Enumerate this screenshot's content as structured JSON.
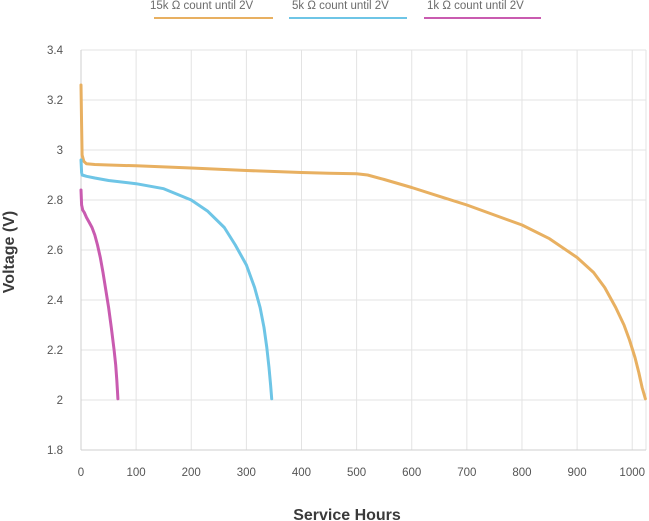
{
  "chart_data": {
    "type": "line",
    "title": "",
    "xlabel": "Service Hours",
    "ylabel": "Voltage (V)",
    "xlim": [
      0,
      1025
    ],
    "ylim": [
      1.8,
      3.4
    ],
    "xticks": [
      0,
      100,
      200,
      300,
      400,
      500,
      600,
      700,
      800,
      900,
      1000
    ],
    "xtick_labels": [
      "0",
      "100",
      "200",
      "300",
      "400",
      "500",
      "600",
      "700",
      "800",
      "900",
      "1000"
    ],
    "yticks": [
      1.8,
      2.0,
      2.2,
      2.4,
      2.6,
      2.8,
      3.0,
      3.2,
      3.4
    ],
    "ytick_labels": [
      "1.8",
      "2",
      "2.2",
      "2.4",
      "2.6",
      "2.8",
      "3",
      "3.2",
      "3.4"
    ],
    "grid": "on",
    "legend_position": "top",
    "series": [
      {
        "name": "15k Ω count until 2V",
        "color": "#e8b061",
        "x": [
          0,
          1,
          2,
          5,
          10,
          25,
          50,
          100,
          200,
          300,
          400,
          450,
          500,
          520,
          550,
          600,
          650,
          700,
          750,
          800,
          850,
          900,
          930,
          950,
          970,
          985,
          995,
          1005,
          1012,
          1018,
          1024
        ],
        "y": [
          3.26,
          3.1,
          2.98,
          2.955,
          2.945,
          2.942,
          2.94,
          2.937,
          2.928,
          2.918,
          2.91,
          2.907,
          2.905,
          2.9,
          2.882,
          2.85,
          2.815,
          2.78,
          2.74,
          2.7,
          2.645,
          2.57,
          2.51,
          2.45,
          2.37,
          2.3,
          2.24,
          2.17,
          2.11,
          2.05,
          2.005
        ]
      },
      {
        "name": "5k Ω count until 2V",
        "color": "#6ec5e6",
        "x": [
          0,
          1,
          2,
          5,
          10,
          25,
          50,
          100,
          150,
          200,
          230,
          260,
          280,
          300,
          315,
          325,
          332,
          337,
          341,
          344,
          346
        ],
        "y": [
          2.96,
          2.91,
          2.9,
          2.898,
          2.895,
          2.888,
          2.878,
          2.865,
          2.845,
          2.8,
          2.755,
          2.69,
          2.62,
          2.54,
          2.45,
          2.37,
          2.29,
          2.21,
          2.13,
          2.06,
          2.005
        ]
      },
      {
        "name": "1k Ω count until 2V",
        "color": "#c95bb0",
        "x": [
          0,
          1,
          3,
          6,
          10,
          15,
          20,
          25,
          30,
          35,
          40,
          45,
          50,
          55,
          60,
          63,
          65,
          66,
          67
        ],
        "y": [
          2.84,
          2.78,
          2.76,
          2.75,
          2.73,
          2.71,
          2.69,
          2.66,
          2.62,
          2.57,
          2.51,
          2.44,
          2.37,
          2.29,
          2.2,
          2.14,
          2.08,
          2.04,
          2.005
        ]
      }
    ]
  }
}
